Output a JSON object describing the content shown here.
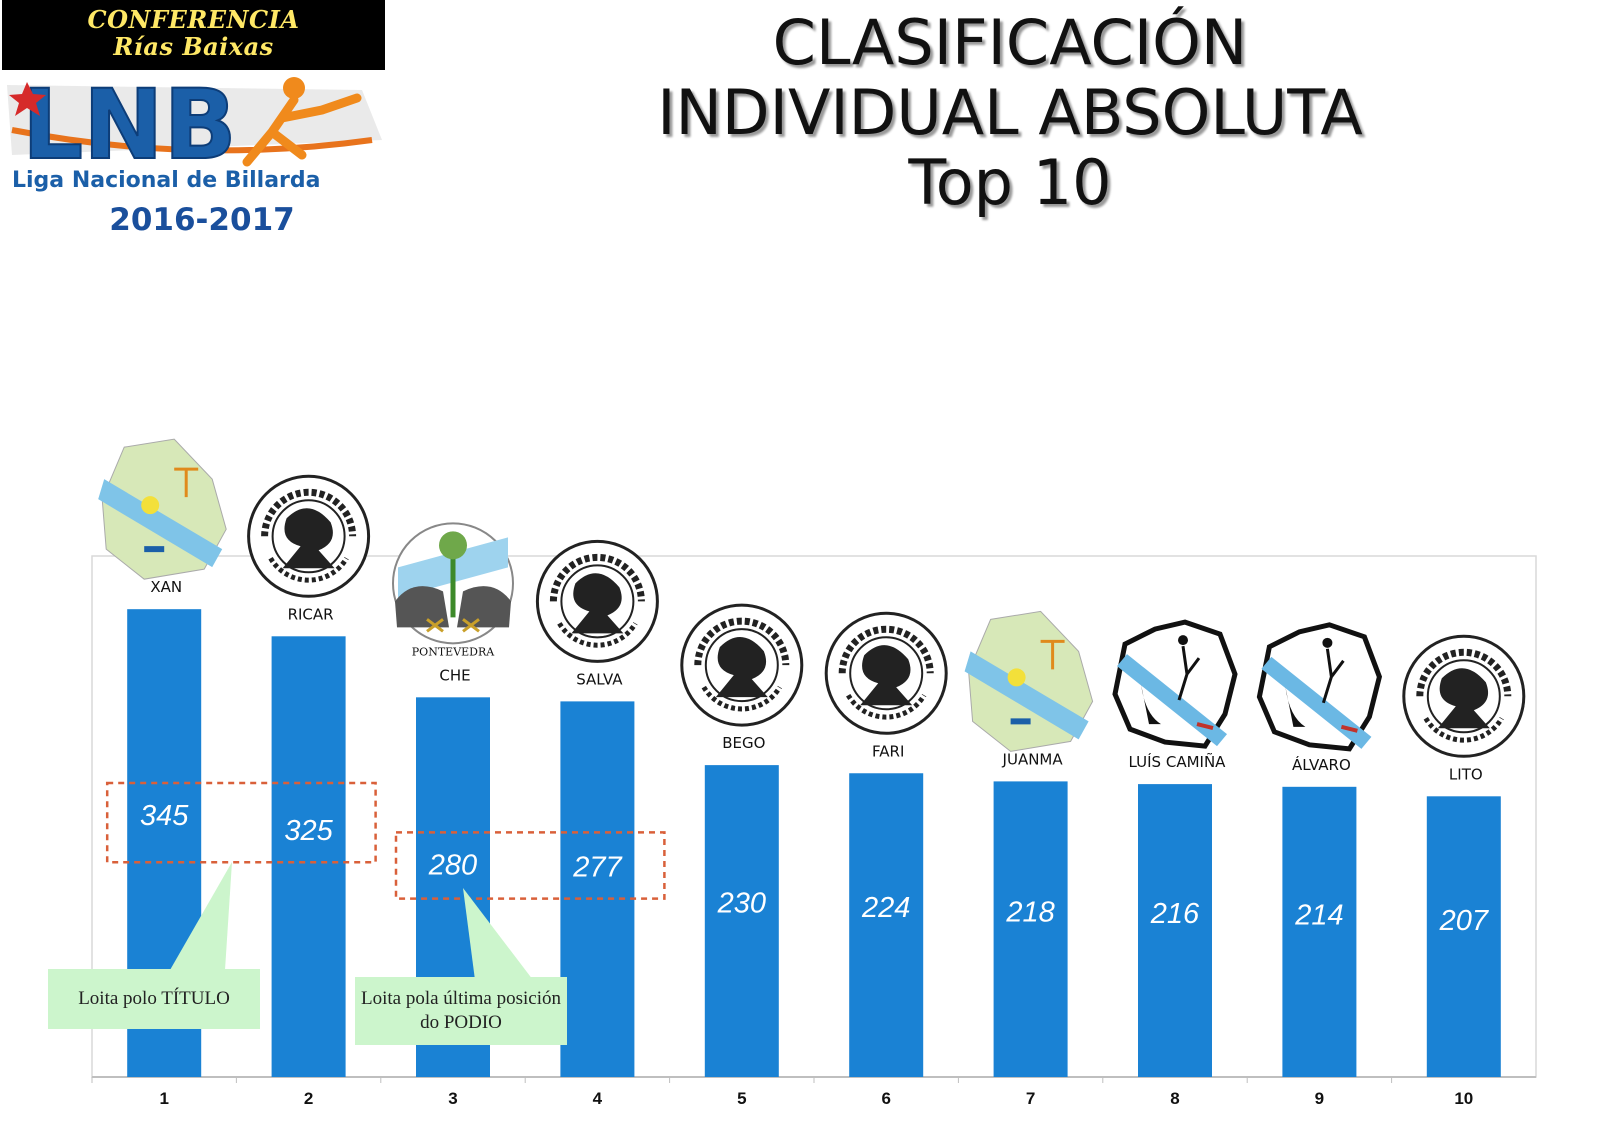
{
  "header": {
    "logo": {
      "line1": "CONFERENCIA",
      "line2": "Rías Baixas",
      "brand": "LNB",
      "subtitle": "Liga Nacional de Billarda",
      "season": "2016-2017"
    },
    "title_lines": [
      "CLASIFICACIÓN",
      "INDIVIDUAL ABSOLUTA",
      "Top 10"
    ]
  },
  "colors": {
    "bar": "#1a82d4",
    "highlight_box": "#d9603a",
    "callout_bg": "#ccf5cc"
  },
  "chart_data": {
    "type": "bar",
    "categories": [
      "1",
      "2",
      "3",
      "4",
      "5",
      "6",
      "7",
      "8",
      "9",
      "10"
    ],
    "values": [
      345,
      325,
      280,
      277,
      230,
      224,
      218,
      216,
      214,
      207
    ],
    "players": [
      "XAN",
      "RICAR",
      "CHE",
      "SALVA",
      "BEGO",
      "FARI",
      "JUANMA",
      "LUÍS CAMIÑA",
      "ÁLVARO",
      "LITO"
    ],
    "team_logos": [
      "lua-e-forza-logo",
      "clube-corredoiras-logo",
      "pontevedra-rcb-logo",
      "clube-corredoiras-logo",
      "clube-corredoiras-logo",
      "clube-corredoiras-logo",
      "lua-e-forza-logo",
      "marin-logo",
      "marin-logo",
      "clube-corredoiras-logo"
    ],
    "pontevedra_caption": "PONTEVEDRA",
    "ylim": [
      0,
      400
    ],
    "grid": false,
    "annotations": [
      {
        "text": "Loita polo TÍTULO",
        "covers": [
          "1",
          "2"
        ]
      },
      {
        "text": "Loita pola última posición do  PODIO",
        "covers": [
          "3",
          "4"
        ]
      }
    ]
  }
}
